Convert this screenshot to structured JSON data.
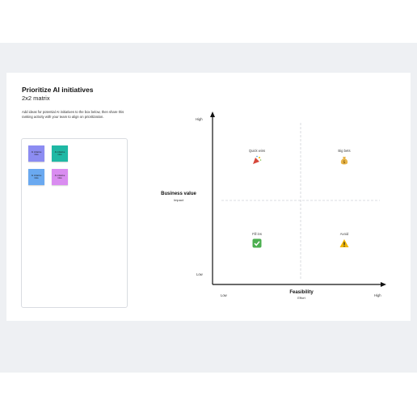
{
  "board": {
    "title": "Prioritize AI initiatives",
    "subtitle": "2x2 matrix",
    "description": "Add ideas for potential AI initiatives to the box below, then share this ranking activity with your team to align on prioritization."
  },
  "stickies": [
    {
      "label": "AI initiative idea",
      "color": "#8c8cf2"
    },
    {
      "label": "AI initiative idea",
      "color": "#1fb8a4"
    },
    {
      "label": "AI initiative idea",
      "color": "#6aa9f0"
    },
    {
      "label": "AI initiative idea",
      "color": "#d98cf0"
    }
  ],
  "matrix": {
    "y_axis": {
      "title": "Business value",
      "subtitle": "Impact",
      "high": "High",
      "low": "Low"
    },
    "x_axis": {
      "title": "Feasibility",
      "subtitle": "Effort",
      "low": "Low",
      "high": "High"
    },
    "quadrants": {
      "top_left": {
        "label": "Quick wins",
        "icon": "party-popper-icon"
      },
      "top_right": {
        "label": "Big bets",
        "icon": "money-bag-icon"
      },
      "bottom_left": {
        "label": "Fill ins",
        "icon": "check-mark-icon"
      },
      "bottom_right": {
        "label": "Avoid",
        "icon": "warning-icon"
      }
    }
  }
}
